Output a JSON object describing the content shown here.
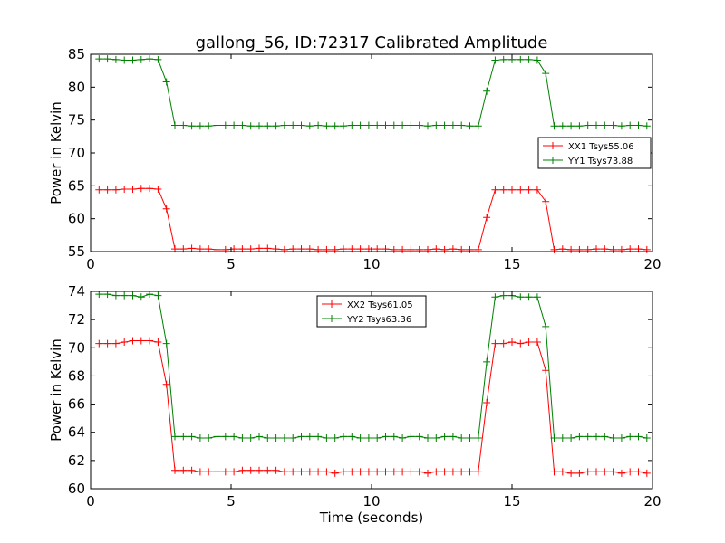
{
  "figure": {
    "title": "gallong_56, ID:72317 Calibrated Amplitude"
  },
  "chart_data": [
    {
      "type": "line",
      "title": "gallong_56, ID:72317 Calibrated Amplitude",
      "xlabel": "",
      "ylabel": "Power in Kelvin",
      "xlim": [
        0,
        20
      ],
      "ylim": [
        55,
        85
      ],
      "xticks": [
        0,
        5,
        10,
        15,
        20
      ],
      "yticks": [
        55,
        60,
        65,
        70,
        75,
        80,
        85
      ],
      "grid": false,
      "legend_position": "center-right",
      "x": [
        0.3,
        0.6,
        0.9,
        1.2,
        1.5,
        1.8,
        2.1,
        2.4,
        2.7,
        3.0,
        3.3,
        3.6,
        3.9,
        4.2,
        4.5,
        4.8,
        5.1,
        5.4,
        5.7,
        6.0,
        6.3,
        6.6,
        6.9,
        7.2,
        7.5,
        7.8,
        8.1,
        8.4,
        8.7,
        9.0,
        9.3,
        9.6,
        9.9,
        10.2,
        10.5,
        10.8,
        11.1,
        11.4,
        11.7,
        12.0,
        12.3,
        12.6,
        12.9,
        13.2,
        13.5,
        13.8,
        14.1,
        14.4,
        14.7,
        15.0,
        15.3,
        15.6,
        15.9,
        16.2,
        16.5,
        16.8,
        17.1,
        17.4,
        17.7,
        18.0,
        18.3,
        18.6,
        18.9,
        19.2,
        19.5,
        19.8
      ],
      "series": [
        {
          "name": "XX1 Tsys55.06",
          "color": "#ff0000",
          "values": [
            64.4,
            64.4,
            64.4,
            64.5,
            64.5,
            64.6,
            64.6,
            64.5,
            61.5,
            55.4,
            55.4,
            55.5,
            55.4,
            55.4,
            55.3,
            55.3,
            55.4,
            55.4,
            55.4,
            55.5,
            55.5,
            55.4,
            55.3,
            55.4,
            55.4,
            55.4,
            55.3,
            55.3,
            55.3,
            55.4,
            55.4,
            55.4,
            55.4,
            55.4,
            55.4,
            55.3,
            55.3,
            55.3,
            55.3,
            55.3,
            55.4,
            55.3,
            55.4,
            55.3,
            55.3,
            55.3,
            60.2,
            64.4,
            64.4,
            64.4,
            64.4,
            64.4,
            64.4,
            62.6,
            55.3,
            55.4,
            55.3,
            55.3,
            55.3,
            55.4,
            55.4,
            55.3,
            55.3,
            55.4,
            55.4,
            55.3
          ]
        },
        {
          "name": "YY1 Tsys73.88",
          "color": "#008000",
          "values": [
            84.3,
            84.3,
            84.2,
            84.1,
            84.1,
            84.2,
            84.3,
            84.2,
            80.8,
            74.2,
            74.2,
            74.1,
            74.1,
            74.1,
            74.2,
            74.2,
            74.2,
            74.2,
            74.1,
            74.1,
            74.1,
            74.1,
            74.2,
            74.2,
            74.2,
            74.1,
            74.2,
            74.1,
            74.1,
            74.1,
            74.2,
            74.2,
            74.2,
            74.2,
            74.2,
            74.2,
            74.2,
            74.2,
            74.2,
            74.1,
            74.2,
            74.2,
            74.2,
            74.2,
            74.1,
            74.1,
            79.4,
            84.1,
            84.2,
            84.2,
            84.2,
            84.2,
            84.1,
            82.1,
            74.1,
            74.1,
            74.1,
            74.1,
            74.2,
            74.2,
            74.2,
            74.2,
            74.1,
            74.2,
            74.2,
            74.1
          ]
        }
      ]
    },
    {
      "type": "line",
      "title": "",
      "xlabel": "Time (seconds)",
      "ylabel": "Power in Kelvin",
      "xlim": [
        0,
        20
      ],
      "ylim": [
        60,
        74
      ],
      "xticks": [
        0,
        5,
        10,
        15,
        20
      ],
      "yticks": [
        60,
        62,
        64,
        66,
        68,
        70,
        72,
        74
      ],
      "grid": false,
      "legend_position": "upper-center",
      "x": [
        0.3,
        0.6,
        0.9,
        1.2,
        1.5,
        1.8,
        2.1,
        2.4,
        2.7,
        3.0,
        3.3,
        3.6,
        3.9,
        4.2,
        4.5,
        4.8,
        5.1,
        5.4,
        5.7,
        6.0,
        6.3,
        6.6,
        6.9,
        7.2,
        7.5,
        7.8,
        8.1,
        8.4,
        8.7,
        9.0,
        9.3,
        9.6,
        9.9,
        10.2,
        10.5,
        10.8,
        11.1,
        11.4,
        11.7,
        12.0,
        12.3,
        12.6,
        12.9,
        13.2,
        13.5,
        13.8,
        14.1,
        14.4,
        14.7,
        15.0,
        15.3,
        15.6,
        15.9,
        16.2,
        16.5,
        16.8,
        17.1,
        17.4,
        17.7,
        18.0,
        18.3,
        18.6,
        18.9,
        19.2,
        19.5,
        19.8
      ],
      "series": [
        {
          "name": "XX2 Tsys61.05",
          "color": "#ff0000",
          "values": [
            70.3,
            70.3,
            70.3,
            70.4,
            70.5,
            70.5,
            70.5,
            70.4,
            67.4,
            61.3,
            61.3,
            61.3,
            61.2,
            61.2,
            61.2,
            61.2,
            61.2,
            61.3,
            61.3,
            61.3,
            61.3,
            61.3,
            61.2,
            61.2,
            61.2,
            61.2,
            61.2,
            61.2,
            61.1,
            61.2,
            61.2,
            61.2,
            61.2,
            61.2,
            61.2,
            61.2,
            61.2,
            61.2,
            61.2,
            61.1,
            61.2,
            61.2,
            61.2,
            61.2,
            61.2,
            61.2,
            66.1,
            70.3,
            70.3,
            70.4,
            70.3,
            70.4,
            70.4,
            68.4,
            61.2,
            61.2,
            61.1,
            61.1,
            61.2,
            61.2,
            61.2,
            61.2,
            61.1,
            61.2,
            61.2,
            61.1
          ]
        },
        {
          "name": "YY2 Tsys63.36",
          "color": "#008000",
          "values": [
            73.8,
            73.8,
            73.7,
            73.7,
            73.7,
            73.6,
            73.8,
            73.7,
            70.3,
            63.7,
            63.7,
            63.7,
            63.6,
            63.6,
            63.7,
            63.7,
            63.7,
            63.6,
            63.6,
            63.7,
            63.6,
            63.6,
            63.6,
            63.6,
            63.7,
            63.7,
            63.7,
            63.6,
            63.6,
            63.7,
            63.7,
            63.6,
            63.6,
            63.6,
            63.7,
            63.7,
            63.6,
            63.7,
            63.7,
            63.6,
            63.6,
            63.7,
            63.7,
            63.6,
            63.6,
            63.6,
            69.0,
            73.6,
            73.7,
            73.7,
            73.6,
            73.6,
            73.6,
            71.5,
            63.6,
            63.6,
            63.6,
            63.7,
            63.7,
            63.7,
            63.7,
            63.6,
            63.6,
            63.7,
            63.7,
            63.6
          ]
        }
      ]
    }
  ]
}
